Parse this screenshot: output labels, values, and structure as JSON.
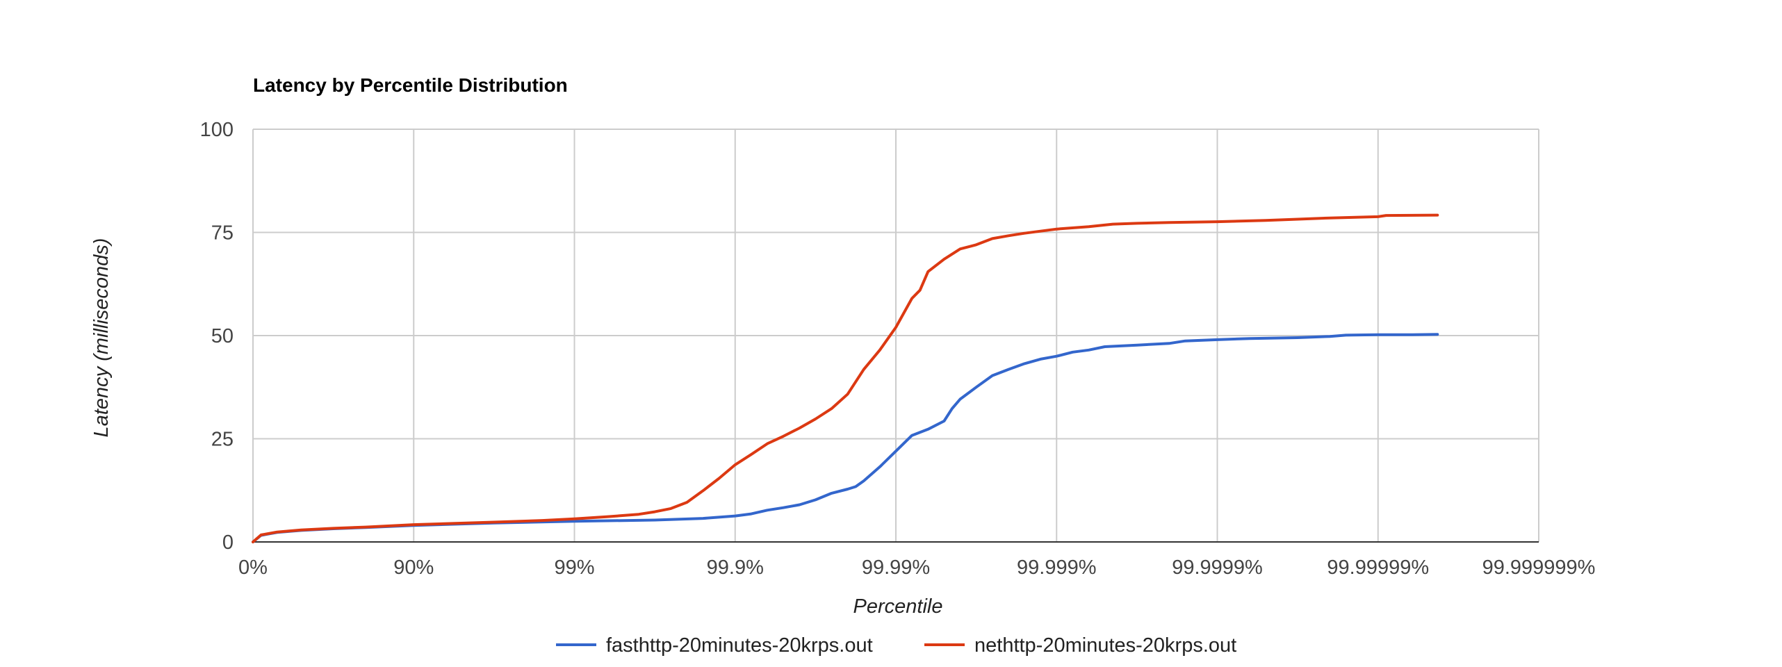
{
  "chart_data": {
    "type": "line",
    "title": "Latency by Percentile Distribution",
    "xlabel": "Percentile",
    "ylabel": "Latency (milliseconds)",
    "x_scale": "log-percentile (each tick = one more nine)",
    "x_ticks": [
      "0%",
      "90%",
      "99%",
      "99.9%",
      "99.99%",
      "99.999%",
      "99.9999%",
      "99.99999%",
      "99.999999%"
    ],
    "y_ticks": [
      "0",
      "25",
      "50",
      "75",
      "100"
    ],
    "ylim": [
      0,
      100
    ],
    "grid": true,
    "legend_position": "bottom",
    "series": [
      {
        "name": "fasthttp-20minutes-20krps.out",
        "color": "#3366cc",
        "points": [
          [
            0,
            0
          ],
          [
            0.05,
            1.6
          ],
          [
            0.15,
            2.3
          ],
          [
            0.3,
            2.8
          ],
          [
            0.5,
            3.2
          ],
          [
            0.7,
            3.5
          ],
          [
            1.0,
            4.0
          ],
          [
            1.5,
            4.6
          ],
          [
            2.0,
            5.0
          ],
          [
            2.5,
            5.3
          ],
          [
            2.8,
            5.7
          ],
          [
            3.0,
            6.3
          ],
          [
            3.1,
            6.8
          ],
          [
            3.2,
            7.7
          ],
          [
            3.3,
            8.3
          ],
          [
            3.4,
            9.0
          ],
          [
            3.5,
            10.2
          ],
          [
            3.6,
            11.8
          ],
          [
            3.7,
            12.8
          ],
          [
            3.75,
            13.4
          ],
          [
            3.8,
            14.8
          ],
          [
            3.9,
            18.2
          ],
          [
            4.0,
            22.0
          ],
          [
            4.1,
            25.8
          ],
          [
            4.2,
            27.3
          ],
          [
            4.3,
            29.3
          ],
          [
            4.35,
            32.3
          ],
          [
            4.4,
            34.6
          ],
          [
            4.5,
            37.5
          ],
          [
            4.6,
            40.3
          ],
          [
            4.7,
            41.8
          ],
          [
            4.8,
            43.2
          ],
          [
            4.9,
            44.3
          ],
          [
            5.0,
            45.0
          ],
          [
            5.1,
            46.0
          ],
          [
            5.2,
            46.5
          ],
          [
            5.3,
            47.3
          ],
          [
            5.5,
            47.7
          ],
          [
            5.7,
            48.1
          ],
          [
            5.8,
            48.7
          ],
          [
            6.0,
            49.0
          ],
          [
            6.2,
            49.3
          ],
          [
            6.5,
            49.5
          ],
          [
            6.7,
            49.8
          ],
          [
            6.8,
            50.1
          ],
          [
            7.0,
            50.2
          ],
          [
            7.2,
            50.2
          ],
          [
            7.37,
            50.3
          ]
        ]
      },
      {
        "name": "nethttp-20minutes-20krps.out",
        "color": "#dc3912",
        "points": [
          [
            0,
            0
          ],
          [
            0.05,
            1.7
          ],
          [
            0.15,
            2.4
          ],
          [
            0.3,
            2.9
          ],
          [
            0.5,
            3.3
          ],
          [
            0.7,
            3.6
          ],
          [
            1.0,
            4.2
          ],
          [
            1.5,
            4.8
          ],
          [
            1.8,
            5.2
          ],
          [
            2.0,
            5.6
          ],
          [
            2.2,
            6.1
          ],
          [
            2.4,
            6.7
          ],
          [
            2.5,
            7.3
          ],
          [
            2.6,
            8.1
          ],
          [
            2.7,
            9.6
          ],
          [
            2.8,
            12.4
          ],
          [
            2.9,
            15.4
          ],
          [
            3.0,
            18.7
          ],
          [
            3.1,
            21.2
          ],
          [
            3.2,
            23.8
          ],
          [
            3.3,
            25.6
          ],
          [
            3.4,
            27.6
          ],
          [
            3.5,
            29.8
          ],
          [
            3.6,
            32.3
          ],
          [
            3.7,
            35.8
          ],
          [
            3.8,
            41.8
          ],
          [
            3.9,
            46.5
          ],
          [
            4.0,
            52.0
          ],
          [
            4.1,
            59.0
          ],
          [
            4.15,
            61.0
          ],
          [
            4.2,
            65.5
          ],
          [
            4.3,
            68.5
          ],
          [
            4.4,
            71.0
          ],
          [
            4.5,
            72.0
          ],
          [
            4.6,
            73.5
          ],
          [
            4.7,
            74.2
          ],
          [
            4.8,
            74.8
          ],
          [
            5.0,
            75.8
          ],
          [
            5.2,
            76.4
          ],
          [
            5.35,
            77.0
          ],
          [
            5.5,
            77.2
          ],
          [
            5.7,
            77.4
          ],
          [
            6.0,
            77.6
          ],
          [
            6.3,
            77.9
          ],
          [
            6.5,
            78.2
          ],
          [
            6.7,
            78.5
          ],
          [
            7.0,
            78.8
          ],
          [
            7.05,
            79.1
          ],
          [
            7.37,
            79.2
          ]
        ]
      }
    ]
  }
}
